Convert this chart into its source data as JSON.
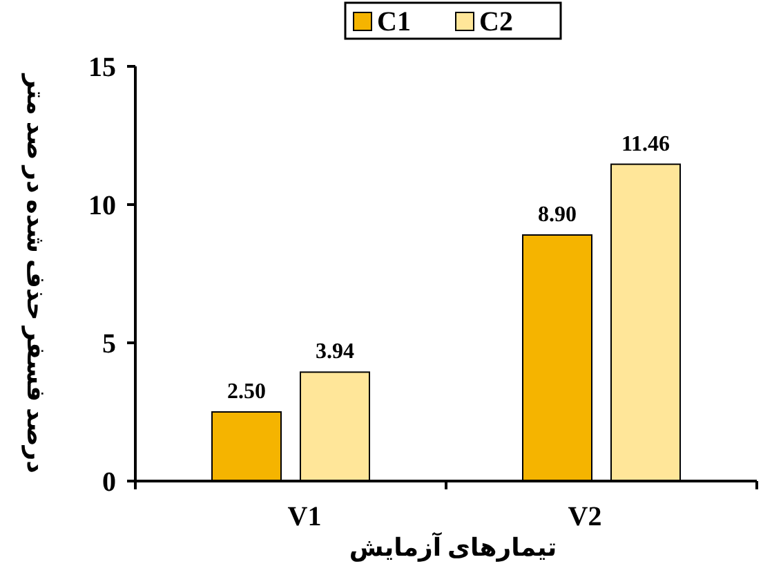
{
  "chart_data": {
    "type": "bar",
    "xlabel": "تیمارهای آزمایش",
    "ylabel": "درصد فسفر حذف شده در صد متر",
    "categories": [
      "V1",
      "V2"
    ],
    "series": [
      {
        "name": "C1",
        "color": "#f5b400",
        "values": [
          2.5,
          8.9
        ],
        "value_labels": [
          "2.50",
          "8.90"
        ]
      },
      {
        "name": "C2",
        "color": "#ffe699",
        "values": [
          3.94,
          11.46
        ],
        "value_labels": [
          "3.94",
          "11.46"
        ]
      }
    ],
    "ylim": [
      0,
      15
    ],
    "yticks": [
      0,
      5,
      10,
      15
    ],
    "grid": false,
    "legend": "top"
  }
}
